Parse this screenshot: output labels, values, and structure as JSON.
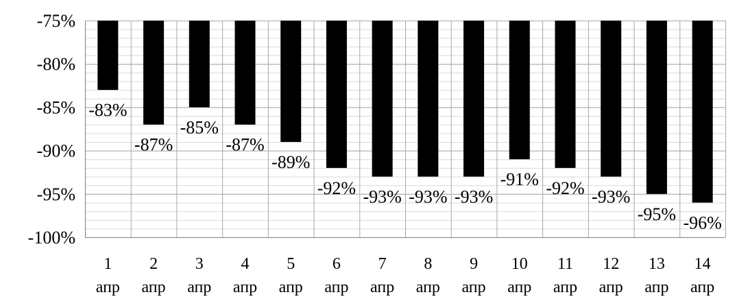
{
  "chart_data": {
    "type": "bar",
    "orientation": "vertical",
    "categories": [
      [
        "1",
        "апр"
      ],
      [
        "2",
        "апр"
      ],
      [
        "3",
        "апр"
      ],
      [
        "4",
        "апр"
      ],
      [
        "5",
        "апр"
      ],
      [
        "6",
        "апр"
      ],
      [
        "7",
        "апр"
      ],
      [
        "8",
        "апр"
      ],
      [
        "9",
        "апр"
      ],
      [
        "10",
        "апр"
      ],
      [
        "11",
        "апр"
      ],
      [
        "12",
        "апр"
      ],
      [
        "13",
        "апр"
      ],
      [
        "14",
        "апр"
      ]
    ],
    "values": [
      -83,
      -87,
      -85,
      -87,
      -89,
      -92,
      -93,
      -93,
      -93,
      -91,
      -92,
      -93,
      -95,
      -96
    ],
    "data_labels": [
      "-83%",
      "-87%",
      "-85%",
      "-87%",
      "-89%",
      "-92%",
      "-93%",
      "-93%",
      "-93%",
      "-91%",
      "-92%",
      "-93%",
      "-95%",
      "-96%"
    ],
    "ylim": [
      -100,
      -75
    ],
    "yticks": [
      -75,
      -80,
      -85,
      -90,
      -95,
      -100
    ],
    "ytick_labels": [
      "-75%",
      "-80%",
      "-85%",
      "-90%",
      "-95%",
      "-100%"
    ],
    "minor_grid_step": 1,
    "bars_hang_from": -75,
    "title": "",
    "xlabel": "",
    "ylabel": "",
    "legend": false,
    "grid": true,
    "colors": {
      "bar": "#000000",
      "major_grid": "#a6a6a6",
      "minor_grid": "#d9d9d9",
      "category_divider": "#a6a6a6",
      "axis": "#7f7f7f",
      "text": "#000000"
    }
  }
}
